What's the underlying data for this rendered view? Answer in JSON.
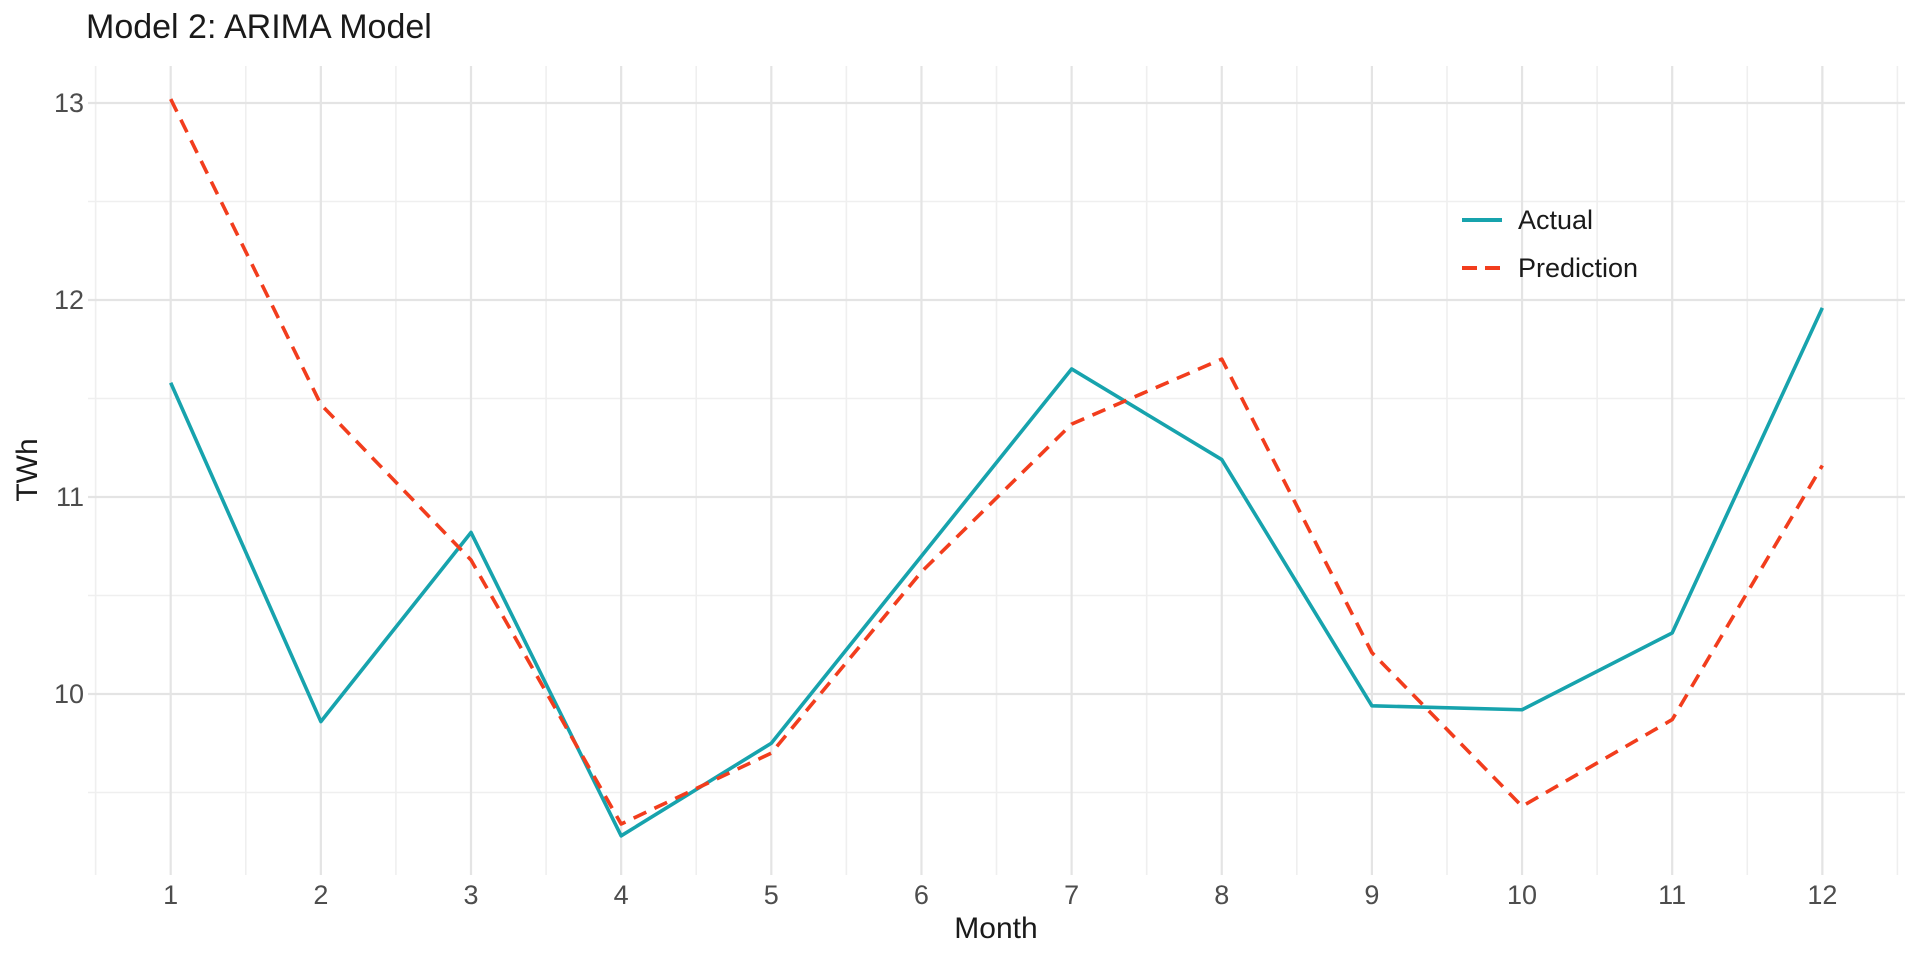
{
  "title": "Model 2: ARIMA Model",
  "chart_data": {
    "type": "line",
    "title": "Model 2: ARIMA Model",
    "xlabel": "Month",
    "ylabel": "TWh",
    "x": [
      1,
      2,
      3,
      4,
      5,
      6,
      7,
      8,
      9,
      10,
      11,
      12
    ],
    "series": [
      {
        "name": "Actual",
        "color": "#17A3AD",
        "style": "solid",
        "values": [
          11.58,
          9.86,
          10.82,
          9.28,
          9.75,
          10.7,
          11.65,
          11.19,
          9.94,
          9.92,
          10.31,
          11.96
        ]
      },
      {
        "name": "Prediction",
        "color": "#F23D1D",
        "style": "dashed",
        "values": [
          13.02,
          11.47,
          10.68,
          9.34,
          9.7,
          10.62,
          11.37,
          11.7,
          10.21,
          9.43,
          9.87,
          11.16
        ]
      }
    ],
    "x_ticks": [
      1,
      2,
      3,
      4,
      5,
      6,
      7,
      8,
      9,
      10,
      11,
      12
    ],
    "x_minor_ticks": [
      0.5,
      1.5,
      2.5,
      3.5,
      4.5,
      5.5,
      6.5,
      7.5,
      8.5,
      9.5,
      10.5,
      11.5,
      12.5
    ],
    "y_ticks": [
      13,
      12,
      11,
      10
    ],
    "y_minor_ticks": [
      12.5,
      11.5,
      10.5,
      9.5
    ],
    "xlim": [
      0.45,
      12.55
    ],
    "ylim": [
      9.08,
      13.22
    ],
    "grid": true,
    "legend_position": "right-inside",
    "colors": {
      "grid_major": "#E4E4E4",
      "grid_minor": "#EFEFEF",
      "tick_text": "#4D4D4D",
      "title_text": "#1A1A1A",
      "background": "#FFFFFF"
    }
  }
}
